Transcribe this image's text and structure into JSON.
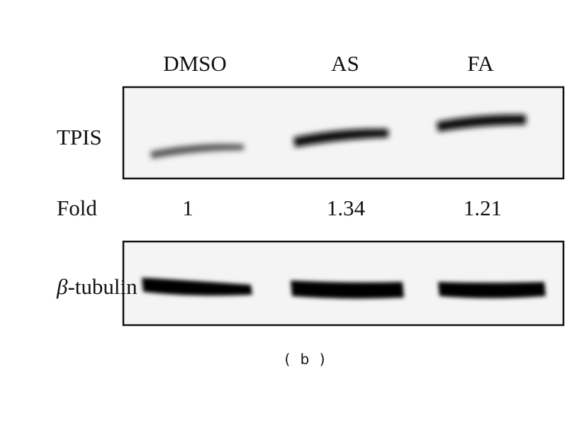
{
  "lanes": [
    "DMSO",
    "AS",
    "FA"
  ],
  "rows": {
    "target_label": "TPIS",
    "fold_label": "Fold",
    "fold_values": [
      "1",
      "1.34",
      "1.21"
    ],
    "loading_label_symbol": "β",
    "loading_label_rest": "-tubulin"
  },
  "caption": "( b )"
}
